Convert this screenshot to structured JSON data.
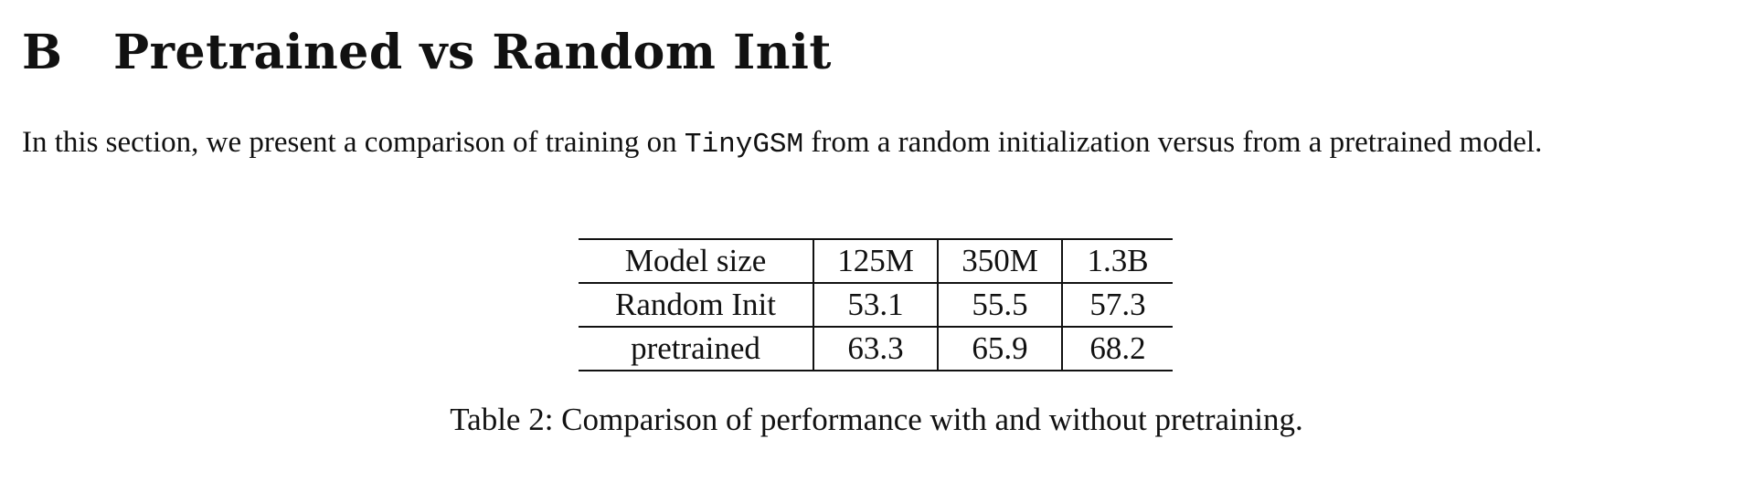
{
  "section": {
    "number": "B",
    "title": "Pretrained vs Random Init"
  },
  "paragraph": {
    "before": "In this section, we present a comparison of training on ",
    "code": "TinyGSM",
    "after": " from a random initialization versus from a pretrained model."
  },
  "table": {
    "header": [
      "Model size",
      "125M",
      "350M",
      "1.3B"
    ],
    "rows": [
      [
        "Random Init",
        "53.1",
        "55.5",
        "57.3"
      ],
      [
        "pretrained",
        "63.3",
        "65.9",
        "68.2"
      ]
    ]
  },
  "caption": "Table 2: Comparison of performance with and without pretraining."
}
